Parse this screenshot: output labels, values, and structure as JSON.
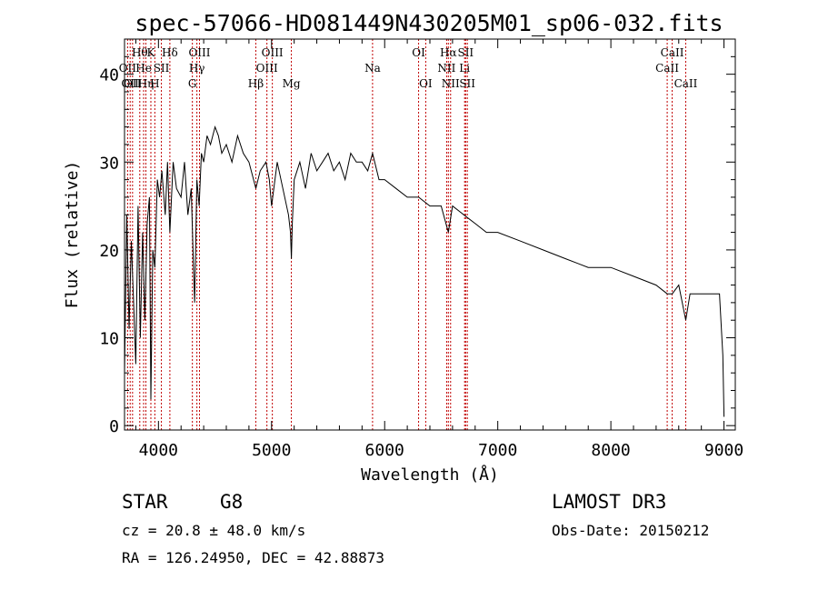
{
  "chart_data": {
    "type": "line",
    "title": "spec-57066-HD081449N430205M01_sp06-032.fits",
    "xlabel": "Wavelength (Å)",
    "ylabel": "Flux (relative)",
    "xlim": [
      3700,
      9100
    ],
    "ylim": [
      -0.5,
      44
    ],
    "x_ticks": [
      4000,
      5000,
      6000,
      7000,
      8000,
      9000
    ],
    "y_ticks": [
      0,
      10,
      20,
      30,
      40
    ],
    "series": [
      {
        "name": "spectrum",
        "x": [
          3700,
          3720,
          3740,
          3760,
          3780,
          3800,
          3820,
          3840,
          3860,
          3880,
          3900,
          3920,
          3933,
          3950,
          3968,
          3990,
          4010,
          4030,
          4060,
          4080,
          4101,
          4130,
          4160,
          4200,
          4230,
          4260,
          4290,
          4310,
          4320,
          4340,
          4360,
          4380,
          4400,
          4430,
          4460,
          4500,
          4530,
          4560,
          4600,
          4650,
          4700,
          4750,
          4800,
          4861,
          4900,
          4950,
          4980,
          5000,
          5050,
          5100,
          5150,
          5167,
          5175,
          5183,
          5200,
          5250,
          5300,
          5350,
          5400,
          5450,
          5500,
          5550,
          5600,
          5650,
          5700,
          5750,
          5800,
          5850,
          5893,
          5950,
          6000,
          6100,
          6200,
          6300,
          6400,
          6500,
          6563,
          6600,
          6700,
          6800,
          6900,
          7000,
          7200,
          7400,
          7600,
          7800,
          8000,
          8200,
          8400,
          8498,
          8542,
          8600,
          8662,
          8700,
          8800,
          8900,
          8960,
          8990,
          9000
        ],
        "y": [
          6,
          24,
          11,
          21,
          14,
          7,
          25,
          10,
          22,
          12,
          23,
          26,
          3,
          20,
          18,
          28,
          26,
          29,
          24,
          30,
          22,
          30,
          27,
          26,
          30,
          24,
          27,
          18,
          14,
          28,
          25,
          31,
          30,
          33,
          32,
          34,
          33,
          31,
          32,
          30,
          33,
          31,
          30,
          27,
          29,
          30,
          28,
          25,
          30,
          27,
          24,
          22,
          19,
          23,
          28,
          30,
          27,
          31,
          29,
          30,
          31,
          29,
          30,
          28,
          31,
          30,
          30,
          29,
          31,
          28,
          28,
          27,
          26,
          26,
          25,
          25,
          22,
          25,
          24,
          23,
          22,
          22,
          21,
          20,
          19,
          18,
          18,
          17,
          16,
          15,
          15,
          16,
          12,
          15,
          15,
          15,
          15,
          8,
          1
        ]
      }
    ],
    "spectral_lines": [
      {
        "wavelength": 3727,
        "label": "OII",
        "row": 2
      },
      {
        "wavelength": 3750,
        "label": "OII",
        "row": 3
      },
      {
        "wavelength": 3771,
        "label": "OII",
        "row": 3
      },
      {
        "wavelength": 3835,
        "label": "Hθ",
        "row": 1
      },
      {
        "wavelength": 3869,
        "label": "He",
        "row": 2
      },
      {
        "wavelength": 3889,
        "label": "Hη",
        "row": 3
      },
      {
        "wavelength": 3933,
        "label": "K",
        "row": 1
      },
      {
        "wavelength": 3968,
        "label": "H",
        "row": 3
      },
      {
        "wavelength": 4026,
        "label": "SII",
        "row": 2
      },
      {
        "wavelength": 4101,
        "label": "Hδ",
        "row": 1
      },
      {
        "wavelength": 4300,
        "label": "G",
        "row": 3
      },
      {
        "wavelength": 4340,
        "label": "Hγ",
        "row": 2
      },
      {
        "wavelength": 4363,
        "label": "OIII",
        "row": 1
      },
      {
        "wavelength": 4861,
        "label": "Hβ",
        "row": 3
      },
      {
        "wavelength": 4959,
        "label": "OIII",
        "row": 2
      },
      {
        "wavelength": 5007,
        "label": "OIII",
        "row": 1
      },
      {
        "wavelength": 5175,
        "label": "Mg",
        "row": 3
      },
      {
        "wavelength": 5893,
        "label": "Na",
        "row": 2
      },
      {
        "wavelength": 6300,
        "label": "OI",
        "row": 1
      },
      {
        "wavelength": 6363,
        "label": "OI",
        "row": 3
      },
      {
        "wavelength": 6548,
        "label": "NII",
        "row": 2
      },
      {
        "wavelength": 6563,
        "label": "Hα",
        "row": 1
      },
      {
        "wavelength": 6583,
        "label": "NII",
        "row": 3
      },
      {
        "wavelength": 6707,
        "label": "Li",
        "row": 2
      },
      {
        "wavelength": 6716,
        "label": "SII",
        "row": 1
      },
      {
        "wavelength": 6731,
        "label": "SII",
        "row": 3
      },
      {
        "wavelength": 8498,
        "label": "CaII",
        "row": 2
      },
      {
        "wavelength": 8542,
        "label": "CaII",
        "row": 1
      },
      {
        "wavelength": 8662,
        "label": "CaII",
        "row": 3
      }
    ]
  },
  "info": {
    "class": "STAR",
    "subclass": "G8",
    "survey": "LAMOST DR3",
    "cz": "cz = 20.8 ± 48.0 km/s",
    "obs_date": "Obs-Date: 20150212",
    "coords": "RA = 126.24950, DEC =  42.88873"
  }
}
